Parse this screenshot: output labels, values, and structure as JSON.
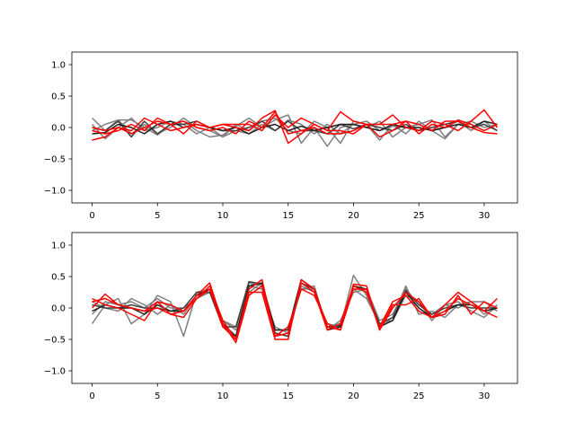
{
  "chart_data": [
    {
      "type": "line",
      "title": "",
      "xlabel": "",
      "ylabel": "",
      "xlim": [
        -1.55,
        32.55
      ],
      "ylim": [
        -1.2,
        1.2
      ],
      "xticks": [
        0,
        5,
        10,
        15,
        20,
        25,
        30
      ],
      "yticks": [
        -1.0,
        -0.5,
        0.0,
        0.5,
        1.0
      ],
      "xtick_labels": [
        "0",
        "5",
        "10",
        "15",
        "20",
        "25",
        "30"
      ],
      "ytick_labels": [
        "−1.0",
        "−0.5",
        "0.0",
        "0.5",
        "1.0"
      ],
      "grid": false,
      "x": [
        0,
        1,
        2,
        3,
        4,
        5,
        6,
        7,
        8,
        9,
        10,
        11,
        12,
        13,
        14,
        15,
        16,
        17,
        18,
        19,
        20,
        21,
        22,
        23,
        24,
        25,
        26,
        27,
        28,
        29,
        30,
        31
      ],
      "series": [
        {
          "color": "#7f7f7f",
          "values": [
            0.15,
            -0.05,
            0.12,
            0.12,
            0.0,
            -0.12,
            0.05,
            0.1,
            -0.05,
            -0.15,
            -0.12,
            0.02,
            0.15,
            0.0,
            0.12,
            0.2,
            -0.25,
            0.0,
            -0.3,
            0.0,
            0.05,
            0.1,
            -0.05,
            0.02,
            0.0,
            0.05,
            0.12,
            -0.15,
            0.05,
            0.05,
            -0.05,
            0.05
          ]
        },
        {
          "color": "#7f7f7f",
          "values": [
            0.05,
            -0.18,
            0.0,
            0.15,
            -0.05,
            0.0,
            0.1,
            0.05,
            -0.1,
            0.0,
            -0.15,
            0.05,
            -0.05,
            0.1,
            0.15,
            -0.05,
            -0.1,
            0.1,
            0.0,
            -0.25,
            0.1,
            0.05,
            -0.2,
            0.05,
            -0.1,
            0.1,
            -0.05,
            -0.18,
            0.05,
            0.1,
            0.0,
            0.05
          ]
        },
        {
          "color": "#7f7f7f",
          "values": [
            -0.05,
            0.05,
            0.12,
            -0.1,
            0.05,
            -0.1,
            0.0,
            0.15,
            0.0,
            -0.05,
            -0.15,
            -0.05,
            -0.1,
            0.05,
            -0.05,
            0.12,
            0.05,
            -0.1,
            0.05,
            -0.1,
            0.05,
            0.0,
            0.1,
            -0.15,
            0.0,
            0.05,
            -0.05,
            0.0,
            0.1,
            -0.05,
            0.1,
            -0.05
          ]
        },
        {
          "color": "#3f3f3f",
          "values": [
            0.0,
            -0.05,
            0.1,
            -0.15,
            0.1,
            -0.1,
            0.05,
            0.05,
            0.1,
            0.0,
            -0.05,
            -0.05,
            0.0,
            0.1,
            -0.05,
            0.1,
            -0.05,
            -0.05,
            -0.1,
            0.05,
            -0.02,
            0.05,
            0.0,
            -0.05,
            0.05,
            -0.05,
            0.0,
            0.05,
            0.1,
            0.0,
            0.05,
            -0.05
          ]
        },
        {
          "color": "#1f1f1f",
          "values": [
            -0.1,
            -0.08,
            0.05,
            0.0,
            -0.1,
            0.05,
            0.1,
            0.0,
            0.05,
            0.0,
            -0.05,
            0.0,
            -0.1,
            0.0,
            0.05,
            -0.05,
            0.02,
            -0.05,
            0.0,
            0.05,
            0.05,
            0.0,
            -0.05,
            0.05,
            0.0,
            0.0,
            -0.05,
            0.0,
            0.05,
            0.0,
            0.1,
            0.05
          ]
        },
        {
          "color": "#ff0000",
          "values": [
            -0.2,
            -0.15,
            0.0,
            -0.05,
            0.15,
            0.05,
            -0.05,
            0.0,
            0.05,
            0.0,
            0.05,
            0.0,
            -0.05,
            0.15,
            0.27,
            -0.25,
            -0.1,
            0.05,
            -0.05,
            0.25,
            0.1,
            0.05,
            -0.15,
            -0.05,
            0.1,
            -0.1,
            0.05,
            0.0,
            0.12,
            0.05,
            -0.05,
            0.05
          ]
        },
        {
          "color": "#ff0000",
          "values": [
            0.0,
            -0.05,
            0.0,
            -0.1,
            0.0,
            0.1,
            0.05,
            -0.1,
            0.1,
            0.0,
            0.05,
            0.05,
            0.05,
            -0.05,
            0.2,
            0.0,
            0.15,
            0.05,
            -0.05,
            -0.05,
            -0.1,
            0.05,
            0.05,
            0.2,
            0.0,
            -0.05,
            0.1,
            0.05,
            -0.05,
            0.1,
            0.28,
            0.0
          ]
        },
        {
          "color": "#ff0000",
          "values": [
            -0.05,
            -0.1,
            -0.05,
            0.05,
            -0.05,
            0.15,
            0.05,
            0.1,
            0.0,
            -0.05,
            0.0,
            -0.1,
            0.1,
            0.0,
            0.25,
            -0.1,
            -0.05,
            0.0,
            -0.1,
            -0.1,
            -0.05,
            0.05,
            0.05,
            0.05,
            0.1,
            0.05,
            -0.05,
            0.1,
            0.1,
            0.0,
            -0.08,
            -0.1
          ]
        }
      ]
    },
    {
      "type": "line",
      "title": "",
      "xlabel": "",
      "ylabel": "",
      "xlim": [
        -1.55,
        32.55
      ],
      "ylim": [
        -1.2,
        1.2
      ],
      "xticks": [
        0,
        5,
        10,
        15,
        20,
        25,
        30
      ],
      "yticks": [
        -1.0,
        -0.5,
        0.0,
        0.5,
        1.0
      ],
      "xtick_labels": [
        "0",
        "5",
        "10",
        "15",
        "20",
        "25",
        "30"
      ],
      "ytick_labels": [
        "−1.0",
        "−0.5",
        "0.0",
        "0.5",
        "1.0"
      ],
      "grid": false,
      "x": [
        0,
        1,
        2,
        3,
        4,
        5,
        6,
        7,
        8,
        9,
        10,
        11,
        12,
        13,
        14,
        15,
        16,
        17,
        18,
        19,
        20,
        21,
        22,
        23,
        24,
        25,
        26,
        27,
        28,
        29,
        30,
        31
      ],
      "series": [
        {
          "color": "#7f7f7f",
          "values": [
            -0.25,
            0.05,
            0.15,
            -0.25,
            -0.1,
            0.2,
            0.1,
            -0.45,
            0.25,
            0.3,
            -0.3,
            -0.45,
            0.4,
            0.35,
            -0.4,
            -0.45,
            0.35,
            0.25,
            -0.25,
            -0.3,
            0.52,
            0.2,
            -0.3,
            -0.15,
            0.35,
            -0.1,
            -0.05,
            -0.15,
            0.05,
            0.1,
            0.1,
            -0.05
          ]
        },
        {
          "color": "#7f7f7f",
          "values": [
            0.1,
            0.0,
            -0.05,
            0.15,
            0.05,
            -0.1,
            0.05,
            -0.1,
            0.2,
            0.25,
            -0.2,
            -0.35,
            0.35,
            0.3,
            -0.3,
            -0.4,
            0.3,
            0.35,
            -0.35,
            -0.2,
            0.25,
            0.3,
            -0.2,
            -0.1,
            0.3,
            0.05,
            -0.1,
            0.05,
            0.1,
            -0.05,
            -0.15,
            0.05
          ]
        },
        {
          "color": "#7f7f7f",
          "values": [
            -0.1,
            0.1,
            0.05,
            0.1,
            0.0,
            0.15,
            0.0,
            0.0,
            0.15,
            0.25,
            -0.2,
            -0.3,
            0.25,
            0.4,
            -0.35,
            -0.35,
            0.3,
            0.3,
            -0.3,
            -0.25,
            0.3,
            0.15,
            -0.25,
            -0.2,
            0.2,
            0.1,
            -0.2,
            0.05,
            0.0,
            0.1,
            -0.1,
            0.0
          ]
        },
        {
          "color": "#3f3f3f",
          "values": [
            0.05,
            0.0,
            0.0,
            0.05,
            0.0,
            0.0,
            -0.05,
            0.0,
            0.25,
            0.25,
            -0.3,
            -0.3,
            0.42,
            0.38,
            -0.4,
            -0.45,
            0.4,
            0.3,
            -0.3,
            -0.28,
            0.35,
            0.25,
            -0.25,
            -0.15,
            0.28,
            0.05,
            -0.1,
            0.0,
            0.05,
            0.0,
            0.0,
            0.0
          ]
        },
        {
          "color": "#1f1f1f",
          "values": [
            -0.05,
            0.05,
            0.0,
            0.0,
            -0.1,
            0.05,
            -0.05,
            -0.05,
            0.2,
            0.3,
            -0.25,
            -0.45,
            0.35,
            0.4,
            -0.35,
            -0.35,
            0.45,
            0.3,
            -0.35,
            -0.3,
            0.35,
            0.3,
            -0.3,
            -0.2,
            0.25,
            0.0,
            -0.15,
            -0.05,
            0.05,
            0.05,
            -0.05,
            0.0
          ]
        },
        {
          "color": "#ff0000",
          "values": [
            0.15,
            0.05,
            0.0,
            -0.1,
            -0.2,
            0.1,
            -0.1,
            -0.15,
            0.15,
            0.35,
            -0.2,
            -0.5,
            0.25,
            0.25,
            -0.5,
            -0.5,
            0.45,
            0.3,
            -0.3,
            -0.35,
            0.38,
            0.35,
            -0.35,
            0.0,
            0.25,
            0.1,
            -0.15,
            0.05,
            0.25,
            0.1,
            -0.05,
            0.15
          ]
        },
        {
          "color": "#ff0000",
          "values": [
            0.0,
            0.22,
            0.05,
            0.0,
            -0.05,
            0.1,
            0.05,
            -0.05,
            0.2,
            0.4,
            -0.25,
            -0.55,
            0.2,
            0.35,
            -0.45,
            -0.3,
            0.3,
            0.2,
            -0.25,
            -0.35,
            0.3,
            0.3,
            -0.35,
            0.05,
            0.05,
            0.15,
            -0.15,
            -0.1,
            0.2,
            -0.1,
            0.1,
            0.0
          ]
        },
        {
          "color": "#ff0000",
          "values": [
            0.1,
            0.15,
            0.05,
            0.0,
            -0.05,
            0.0,
            -0.1,
            -0.05,
            0.15,
            0.3,
            -0.3,
            -0.5,
            0.3,
            0.45,
            -0.45,
            -0.4,
            0.4,
            0.25,
            -0.35,
            -0.25,
            0.35,
            0.25,
            -0.3,
            0.1,
            0.2,
            -0.05,
            -0.15,
            -0.05,
            0.15,
            0.05,
            -0.05,
            -0.15
          ]
        }
      ]
    }
  ]
}
